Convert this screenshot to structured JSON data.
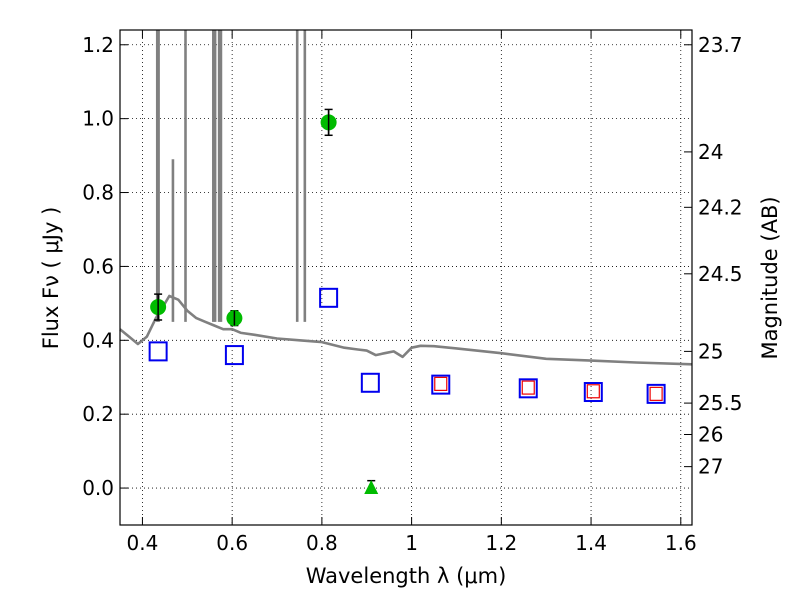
{
  "chart_data": {
    "type": "scatter",
    "xlabel": "Wavelength  λ (μm)",
    "ylabel": "Flux  Fν  ( μJy )",
    "y2label": "Magnitude (AB)",
    "xlim": [
      0.35,
      1.625
    ],
    "ylim": [
      -0.1,
      1.24
    ],
    "grid": true,
    "x_ticks": [
      {
        "value": 0.4,
        "label": "0.4"
      },
      {
        "value": 0.6,
        "label": "0.6"
      },
      {
        "value": 0.8,
        "label": "0.8"
      },
      {
        "value": 1.0,
        "label": "1"
      },
      {
        "value": 1.2,
        "label": "1.2"
      },
      {
        "value": 1.4,
        "label": "1.4"
      },
      {
        "value": 1.6,
        "label": "1.6"
      }
    ],
    "y_ticks": [
      {
        "value": 0.0,
        "label": "0.0"
      },
      {
        "value": 0.2,
        "label": "0.2"
      },
      {
        "value": 0.4,
        "label": "0.4"
      },
      {
        "value": 0.6,
        "label": "0.6"
      },
      {
        "value": 0.8,
        "label": "0.8"
      },
      {
        "value": 1.0,
        "label": "1.0"
      },
      {
        "value": 1.2,
        "label": "1.2"
      }
    ],
    "mag_ticks": [
      {
        "flux": 1.2,
        "label": "23.7"
      },
      {
        "flux": 0.91,
        "label": "24"
      },
      {
        "flux": 0.76,
        "label": "24.2"
      },
      {
        "flux": 0.58,
        "label": "24.5"
      },
      {
        "flux": 0.37,
        "label": "25"
      },
      {
        "flux": 0.23,
        "label": "25.5"
      },
      {
        "flux": 0.145,
        "label": "26"
      },
      {
        "flux": 0.058,
        "label": "27"
      }
    ],
    "series": [
      {
        "name": "template spectrum",
        "kind": "line",
        "color": "#808080",
        "x": [
          0.35,
          0.37,
          0.39,
          0.41,
          0.43,
          0.45,
          0.46,
          0.48,
          0.5,
          0.52,
          0.54,
          0.56,
          0.58,
          0.6,
          0.62,
          0.65,
          0.7,
          0.75,
          0.8,
          0.85,
          0.88,
          0.9,
          0.92,
          0.94,
          0.96,
          0.98,
          1.0,
          1.02,
          1.05,
          1.1,
          1.2,
          1.3,
          1.4,
          1.5,
          1.625
        ],
        "y": [
          0.43,
          0.41,
          0.39,
          0.41,
          0.46,
          0.5,
          0.52,
          0.51,
          0.48,
          0.46,
          0.45,
          0.44,
          0.43,
          0.43,
          0.42,
          0.415,
          0.405,
          0.4,
          0.395,
          0.38,
          0.375,
          0.372,
          0.36,
          0.365,
          0.37,
          0.355,
          0.38,
          0.385,
          0.384,
          0.378,
          0.365,
          0.35,
          0.345,
          0.34,
          0.335
        ]
      },
      {
        "name": "emission spikes",
        "kind": "spikes",
        "color": "#808080",
        "x": [
          0.433,
          0.436,
          0.468,
          0.496,
          0.558,
          0.562,
          0.571,
          0.575,
          0.745,
          0.762
        ],
        "y": [
          1.24,
          1.24,
          0.89,
          1.24,
          1.24,
          1.24,
          1.24,
          1.24,
          1.24,
          1.24
        ]
      },
      {
        "name": "detections",
        "kind": "circle",
        "color": "#00bb00",
        "x": [
          0.435,
          0.605,
          0.815
        ],
        "y": [
          0.49,
          0.46,
          0.99
        ],
        "yerr": [
          0.035,
          0.02,
          0.035
        ]
      },
      {
        "name": "upper limit",
        "kind": "triangle",
        "color": "#00bb00",
        "x": [
          0.91
        ],
        "y": [
          0.0
        ],
        "yerr": [
          0.02
        ]
      },
      {
        "name": "model photometry",
        "kind": "square",
        "color": "#0000ee",
        "x": [
          0.435,
          0.605,
          0.815,
          0.908,
          1.065,
          1.26,
          1.405,
          1.545
        ],
        "y": [
          0.37,
          0.36,
          0.515,
          0.285,
          0.28,
          0.27,
          0.26,
          0.255
        ]
      },
      {
        "name": "model photometry (alt)",
        "kind": "square-small",
        "color": "#ee0000",
        "x": [
          1.065,
          1.26,
          1.405,
          1.545
        ],
        "y": [
          0.282,
          0.272,
          0.262,
          0.255
        ]
      }
    ]
  }
}
